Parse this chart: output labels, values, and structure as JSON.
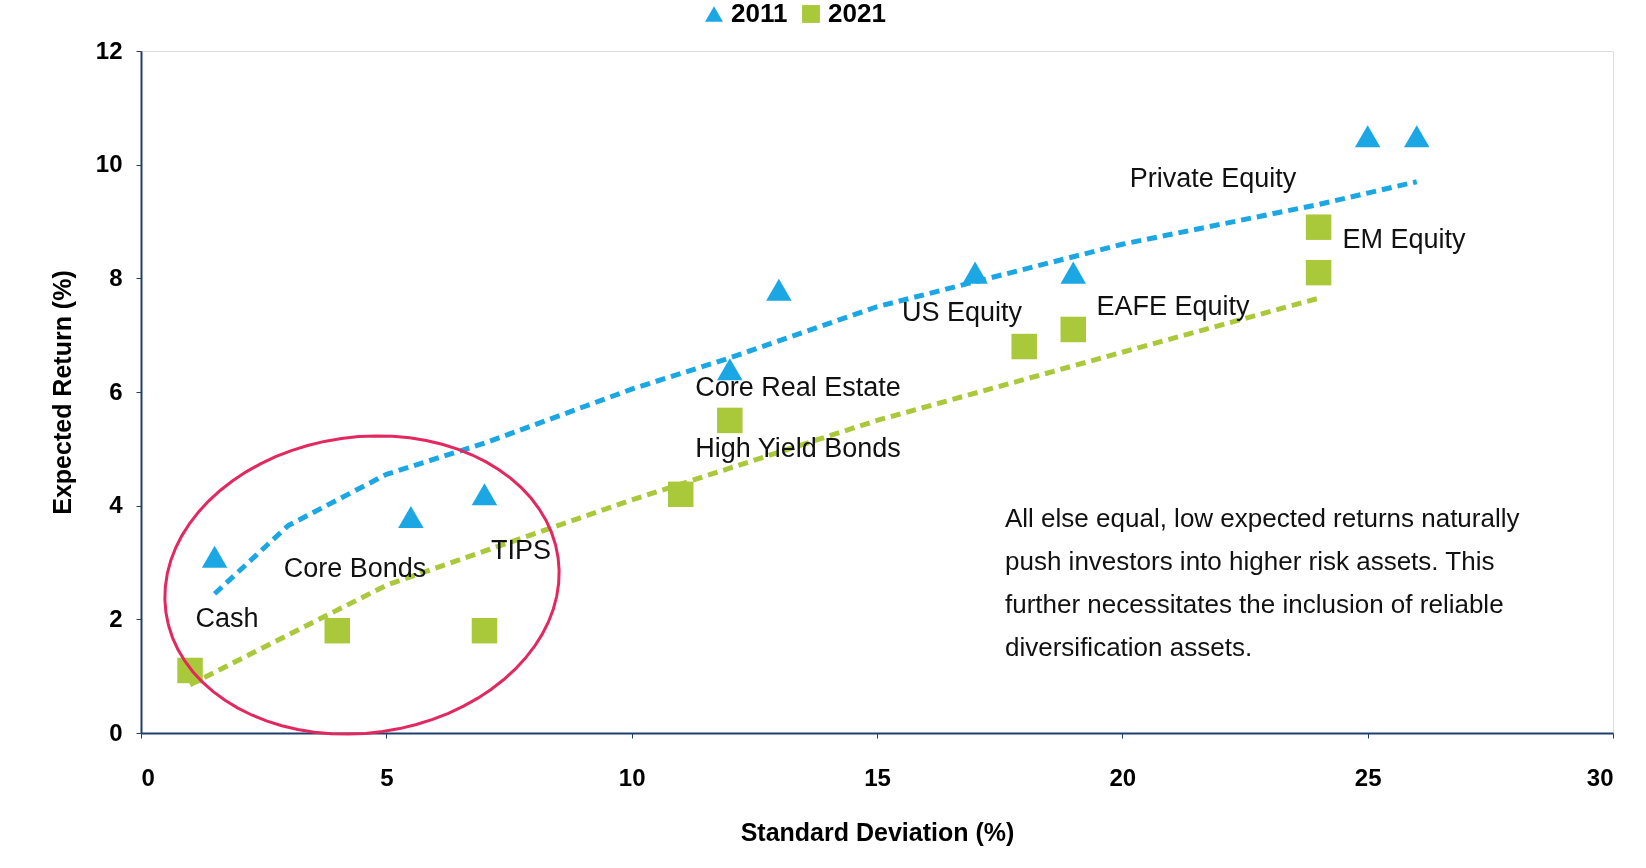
{
  "chart_data": {
    "type": "scatter",
    "xlabel": "Standard Deviation (%)",
    "ylabel": "Expected Return (%)",
    "xlim": [
      0,
      30
    ],
    "xticks": [
      0,
      5,
      10,
      15,
      20,
      25,
      30
    ],
    "ylim": [
      0,
      12
    ],
    "yticks": [
      0,
      2,
      4,
      6,
      8,
      10,
      12
    ],
    "grid": false,
    "legend": "top",
    "series": [
      {
        "name": "2011",
        "color": "#1ba7e3",
        "marker": "triangle",
        "x": [
          1.5,
          5.5,
          7,
          12,
          13,
          17,
          19,
          25,
          26
        ],
        "values": [
          3.1,
          3.8,
          4.2,
          6.4,
          7.8,
          8.1,
          8.1,
          10.5,
          10.5
        ]
      },
      {
        "name": "2021",
        "color": "#a9c93b",
        "marker": "square",
        "x": [
          1,
          4,
          7,
          11,
          12,
          18,
          19,
          24,
          24
        ],
        "values": [
          1.1,
          1.8,
          1.8,
          4.2,
          5.5,
          6.8,
          7.1,
          8.9,
          8.1
        ]
      },
      {
        "type": "line",
        "color": "#1ba7e3",
        "line_style": "dashed",
        "x": [
          1.5,
          3,
          5,
          7,
          10,
          12,
          15,
          20,
          24,
          26
        ],
        "values": [
          2.45,
          3.65,
          4.55,
          5.1,
          6.05,
          6.6,
          7.5,
          8.6,
          9.3,
          9.7
        ]
      },
      {
        "type": "line",
        "color": "#a9c93b",
        "line_style": "dashed",
        "x": [
          1,
          5,
          10,
          15,
          20,
          24
        ],
        "values": [
          0.85,
          2.6,
          4.1,
          5.5,
          6.7,
          7.65
        ]
      }
    ],
    "annotations": [
      "Private Equity",
      "EM Equity",
      "US Equity",
      "EAFE Equity",
      "Core Real Estate",
      "High Yield Bonds",
      "TIPS",
      "Core Bonds",
      "Cash",
      "All else equal, low expected returns naturally push investors into higher risk assets. This further necessitates the inclusion of reliable diversification assets."
    ]
  }
}
